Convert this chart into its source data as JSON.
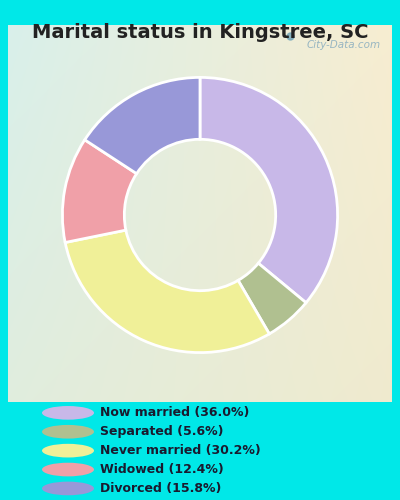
{
  "title": "Marital status in Kingstree, SC",
  "slices": [
    {
      "label": "Now married (36.0%)",
      "value": 36.0,
      "color": "#c8b8e8"
    },
    {
      "label": "Separated (5.6%)",
      "value": 5.6,
      "color": "#b0c090"
    },
    {
      "label": "Never married (30.2%)",
      "value": 30.2,
      "color": "#f0f098"
    },
    {
      "label": "Widowed (12.4%)",
      "value": 12.4,
      "color": "#f0a0a8"
    },
    {
      "label": "Divorced (15.8%)",
      "value": 15.8,
      "color": "#9898d8"
    }
  ],
  "legend_colors": [
    "#c8b8e8",
    "#b0c090",
    "#f0f098",
    "#f0a0a8",
    "#9898d8"
  ],
  "legend_labels": [
    "Now married (36.0%)",
    "Separated (5.6%)",
    "Never married (30.2%)",
    "Widowed (12.4%)",
    "Divorced (15.8%)"
  ],
  "bg_outer_color": "#00e8e8",
  "bg_chart_left": "#c8ece0",
  "bg_chart_right": "#d8ecd0",
  "title_fontsize": 14,
  "watermark": "City-Data.com",
  "donut_width": 0.45
}
